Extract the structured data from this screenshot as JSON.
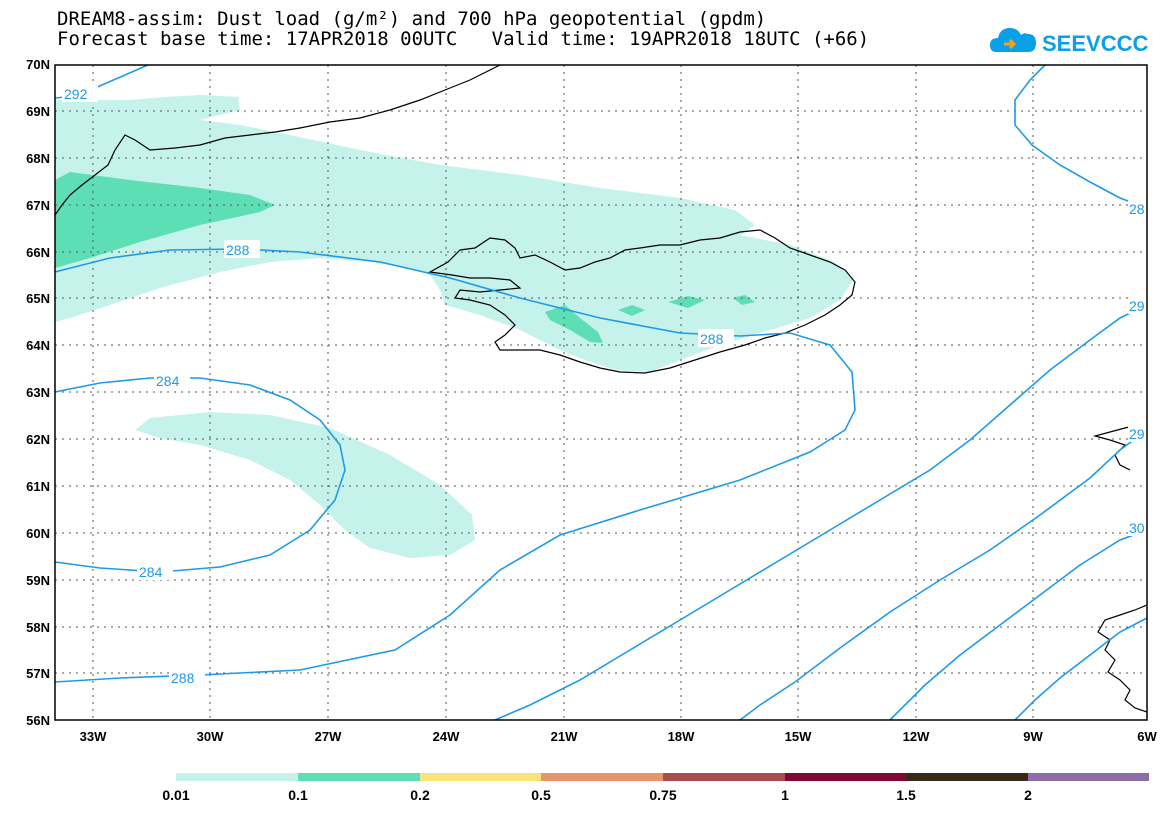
{
  "header": {
    "title_line_1": "DREAM8-assim: Dust load (g/m²) and 700 hPa geopotential (gpdm)",
    "title_line_2": "Forecast base time: 17APR2018 00UTC   Valid time: 19APR2018 18UTC (+66)",
    "logo_text": "SEEVCCC"
  },
  "map": {
    "lat_labels": [
      "70N",
      "69N",
      "68N",
      "67N",
      "66N",
      "65N",
      "64N",
      "63N",
      "62N",
      "61N",
      "60N",
      "59N",
      "58N",
      "57N",
      "56N"
    ],
    "lon_labels": [
      "33W",
      "30W",
      "27W",
      "24W",
      "21W",
      "18W",
      "15W",
      "12W",
      "9W",
      "6W"
    ],
    "contour_labels": [
      "292",
      "288",
      "284",
      "284",
      "288",
      "288",
      "28",
      "29",
      "29",
      "30"
    ],
    "colors": {
      "contour": "#1f9be6",
      "dust_0_01": "#c6f2ec",
      "dust_0_1": "#5ddeb5"
    }
  },
  "legend": {
    "labels": [
      "0.01",
      "0.1",
      "0.2",
      "0.5",
      "0.75",
      "1",
      "1.5",
      "2"
    ],
    "colors": [
      "#c6f2ec",
      "#5ddeb5",
      "#f7e57a",
      "#e6946a",
      "#a84d4d",
      "#800a30",
      "#3a2818",
      "#8e6ea8"
    ]
  }
}
